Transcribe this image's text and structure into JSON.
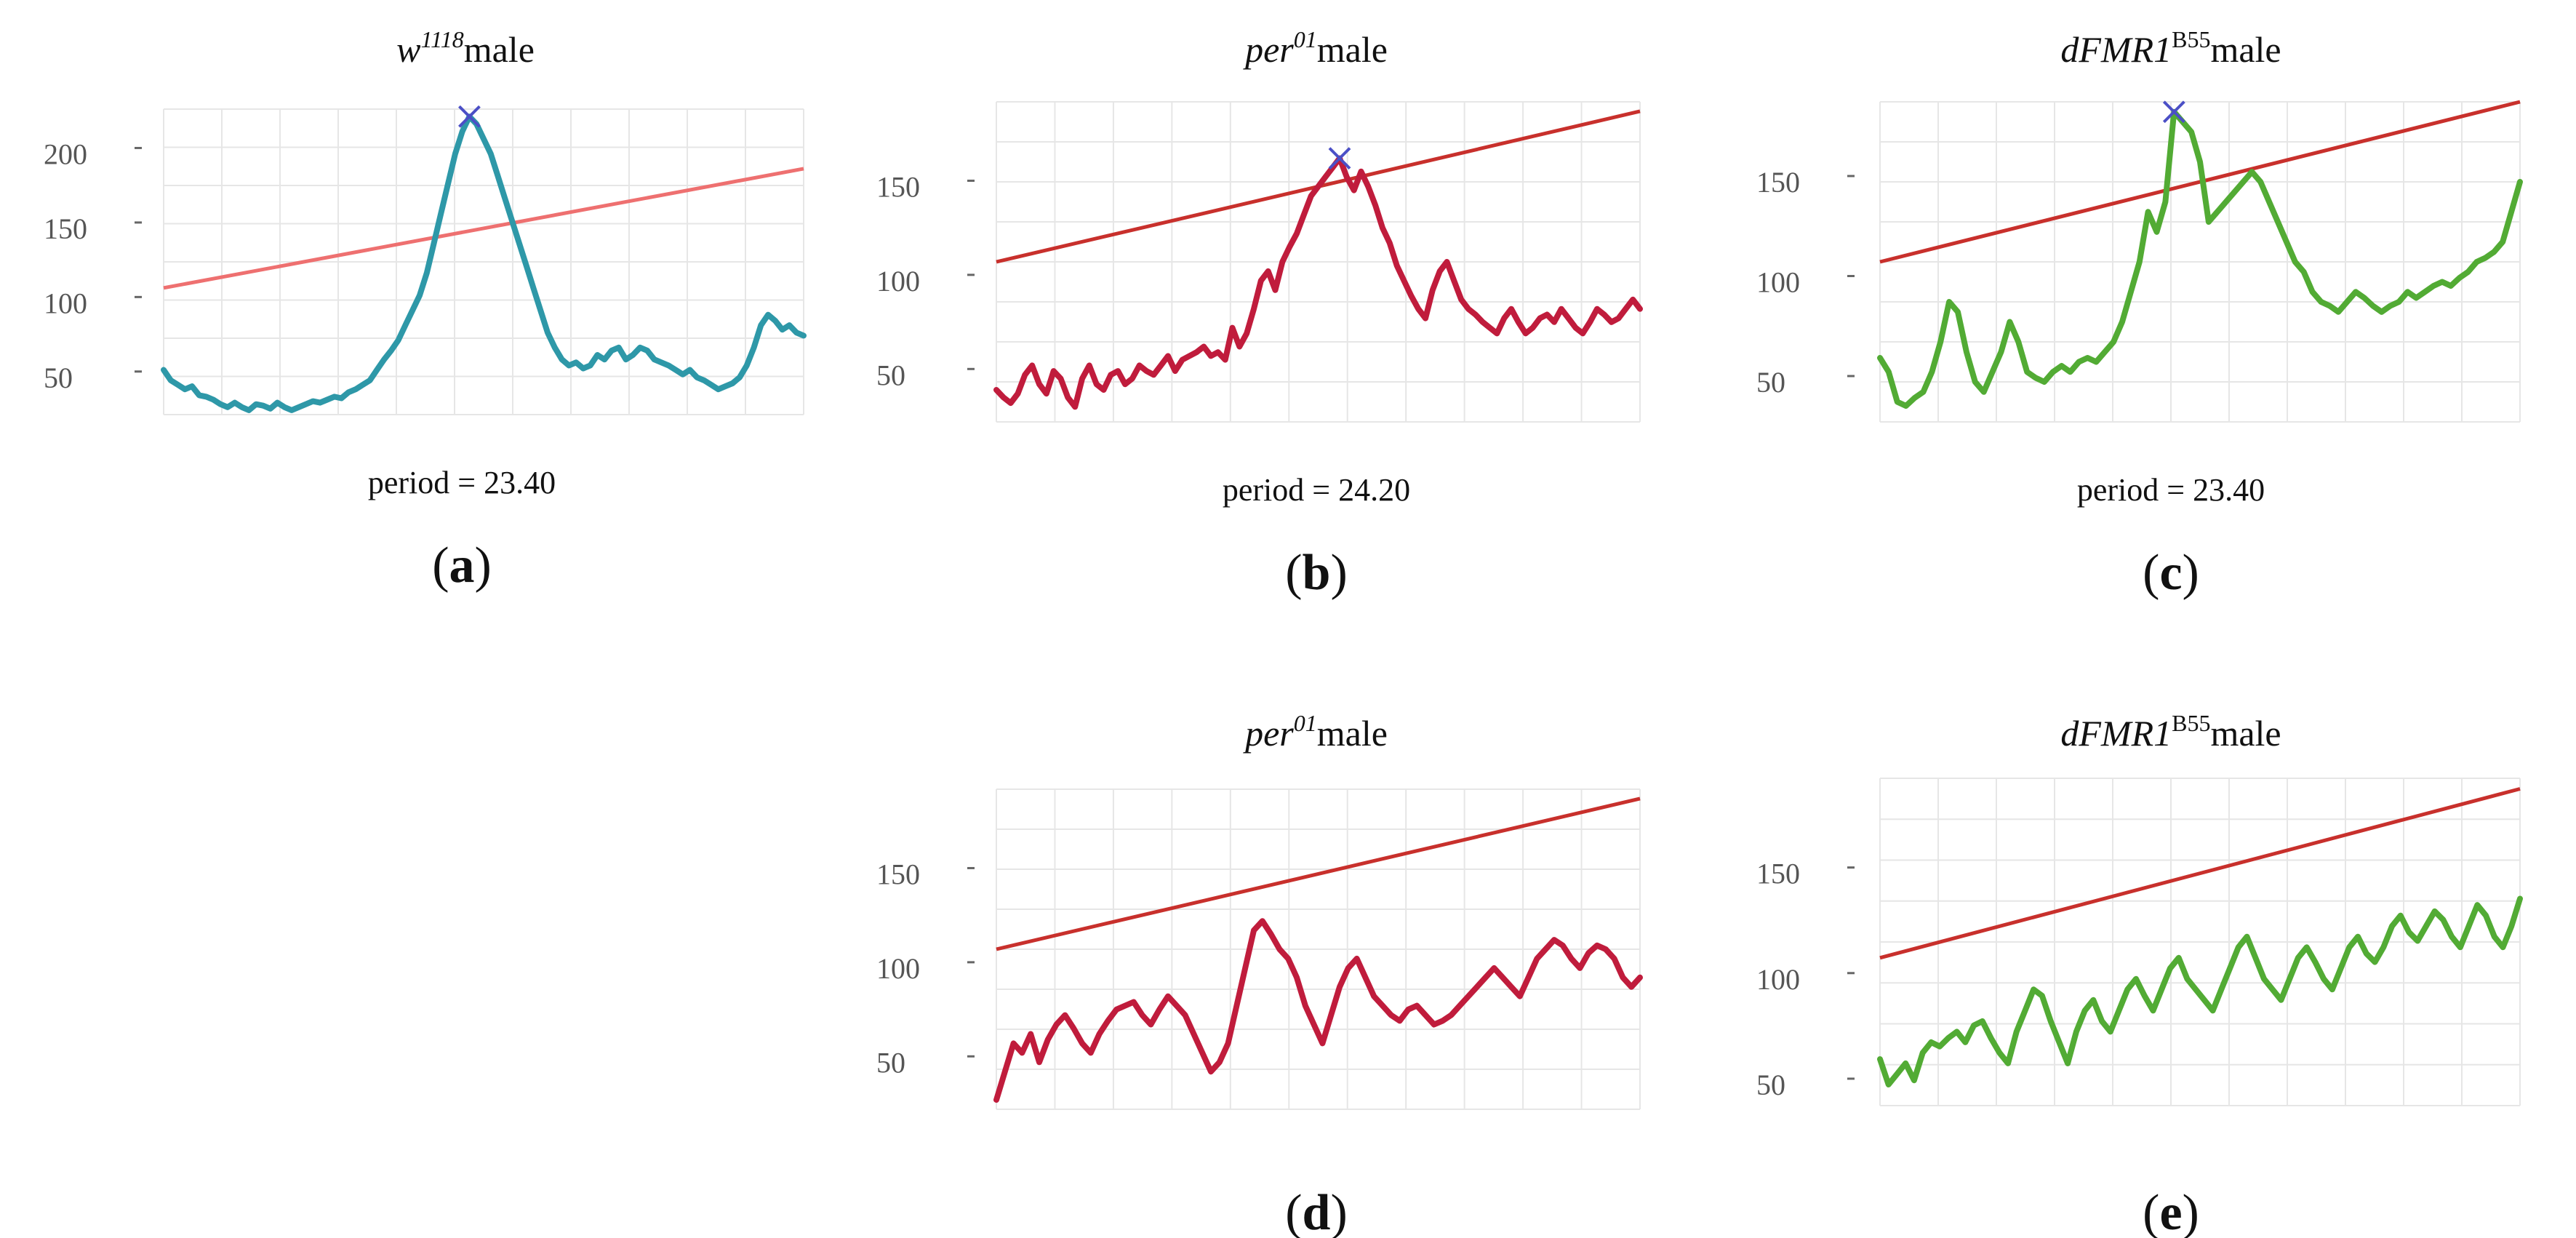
{
  "colors": {
    "teal": "#2e98a8",
    "crimson": "#c01c3c",
    "green": "#52ab34",
    "trend": "#c8302c",
    "trend_light": "#ee7070",
    "peak_marker": "#4b4fc6",
    "grid": "#e6e6e6"
  },
  "chart_data": [
    {
      "id": "a",
      "type": "line",
      "title_main": "w",
      "title_sup": "1118",
      "title_tail": "male",
      "panel_label": "a",
      "period_text": "period = 23.40",
      "ylim": [
        25,
        230
      ],
      "y_ticks": [
        50,
        100,
        150,
        200
      ],
      "grid": true,
      "line_color": "teal",
      "trend_color": "trend_light",
      "peak_marker": true,
      "trend": [
        110,
        190
      ],
      "values": [
        55,
        48,
        45,
        42,
        44,
        38,
        37,
        35,
        32,
        30,
        33,
        30,
        28,
        32,
        31,
        29,
        33,
        30,
        28,
        30,
        32,
        34,
        33,
        35,
        37,
        36,
        40,
        42,
        45,
        48,
        55,
        62,
        68,
        75,
        85,
        95,
        105,
        120,
        140,
        160,
        180,
        200,
        215,
        225,
        220,
        210,
        200,
        185,
        170,
        155,
        140,
        125,
        110,
        95,
        80,
        70,
        62,
        58,
        60,
        56,
        58,
        65,
        62,
        68,
        70,
        62,
        65,
        70,
        68,
        62,
        60,
        58,
        55,
        52,
        55,
        50,
        48,
        45,
        42,
        44,
        46,
        50,
        58,
        70,
        85,
        92,
        88,
        82,
        85,
        80,
        78
      ]
    },
    {
      "id": "b",
      "type": "line",
      "title_main": "per",
      "title_sup": "01",
      "title_tail": "male",
      "panel_label": "b",
      "period_text": "period = 24.20",
      "ylim": [
        25,
        195
      ],
      "y_ticks": [
        50,
        100,
        150
      ],
      "grid": true,
      "line_color": "crimson",
      "trend_color": "trend",
      "peak_marker": true,
      "trend": [
        110,
        190
      ],
      "values": [
        42,
        38,
        35,
        40,
        50,
        55,
        45,
        40,
        52,
        48,
        38,
        33,
        48,
        55,
        45,
        42,
        50,
        52,
        45,
        48,
        55,
        52,
        50,
        55,
        60,
        52,
        58,
        60,
        62,
        65,
        60,
        62,
        58,
        75,
        65,
        72,
        85,
        100,
        105,
        95,
        110,
        118,
        125,
        135,
        145,
        150,
        155,
        160,
        165,
        155,
        148,
        158,
        150,
        140,
        128,
        120,
        108,
        100,
        92,
        85,
        80,
        95,
        105,
        110,
        100,
        90,
        85,
        82,
        78,
        75,
        72,
        80,
        85,
        78,
        72,
        75,
        80,
        82,
        78,
        85,
        80,
        75,
        72,
        78,
        85,
        82,
        78,
        80,
        85,
        90,
        85
      ]
    },
    {
      "id": "c",
      "type": "line",
      "title_main": "dFMR1",
      "title_sup": "B55",
      "title_tail": "male",
      "panel_label": "c",
      "period_text": "period = 23.40",
      "ylim": [
        30,
        190
      ],
      "y_ticks": [
        50,
        100,
        150
      ],
      "grid": true,
      "line_color": "green",
      "trend_color": "trend",
      "peak_marker": true,
      "trend": [
        110,
        190
      ],
      "values": [
        62,
        55,
        40,
        38,
        42,
        45,
        55,
        70,
        90,
        85,
        65,
        50,
        45,
        55,
        65,
        80,
        70,
        55,
        52,
        50,
        55,
        58,
        55,
        60,
        62,
        60,
        65,
        70,
        80,
        95,
        110,
        135,
        125,
        140,
        185,
        180,
        175,
        160,
        130,
        135,
        140,
        145,
        150,
        155,
        150,
        140,
        130,
        120,
        110,
        105,
        95,
        90,
        88,
        85,
        90,
        95,
        92,
        88,
        85,
        88,
        90,
        95,
        92,
        95,
        98,
        100,
        98,
        102,
        105,
        110,
        112,
        115,
        120,
        135,
        150
      ]
    },
    {
      "id": "d",
      "type": "line",
      "title_main": "per",
      "title_sup": "01",
      "title_tail": "male",
      "panel_label": "d",
      "period_text": "",
      "ylim": [
        25,
        195
      ],
      "y_ticks": [
        50,
        100,
        150
      ],
      "grid": true,
      "line_color": "crimson",
      "trend_color": "trend",
      "peak_marker": false,
      "trend": [
        110,
        190
      ],
      "values": [
        30,
        45,
        60,
        55,
        65,
        50,
        62,
        70,
        75,
        68,
        60,
        55,
        65,
        72,
        78,
        80,
        82,
        75,
        70,
        78,
        85,
        80,
        75,
        65,
        55,
        45,
        50,
        60,
        80,
        100,
        120,
        125,
        118,
        110,
        105,
        95,
        80,
        70,
        60,
        75,
        90,
        100,
        105,
        95,
        85,
        80,
        75,
        72,
        78,
        80,
        75,
        70,
        72,
        75,
        80,
        85,
        90,
        95,
        100,
        95,
        90,
        85,
        95,
        105,
        110,
        115,
        112,
        105,
        100,
        108,
        112,
        110,
        105,
        95,
        90,
        95
      ]
    },
    {
      "id": "e",
      "type": "line",
      "title_main": "dFMR1",
      "title_sup": "B55",
      "title_tail": "male",
      "panel_label": "e",
      "period_text": "",
      "ylim": [
        40,
        195
      ],
      "y_ticks": [
        50,
        100,
        150
      ],
      "grid": true,
      "line_color": "green",
      "trend_color": "trend",
      "peak_marker": false,
      "trend": [
        110,
        190
      ],
      "values": [
        62,
        50,
        55,
        60,
        52,
        65,
        70,
        68,
        72,
        75,
        70,
        78,
        80,
        72,
        65,
        60,
        75,
        85,
        95,
        92,
        80,
        70,
        60,
        75,
        85,
        90,
        80,
        75,
        85,
        95,
        100,
        92,
        85,
        95,
        105,
        110,
        100,
        95,
        90,
        85,
        95,
        105,
        115,
        120,
        110,
        100,
        95,
        90,
        100,
        110,
        115,
        108,
        100,
        95,
        105,
        115,
        120,
        112,
        108,
        115,
        125,
        130,
        122,
        118,
        125,
        132,
        128,
        120,
        115,
        125,
        135,
        130,
        120,
        115,
        125,
        138
      ]
    }
  ]
}
